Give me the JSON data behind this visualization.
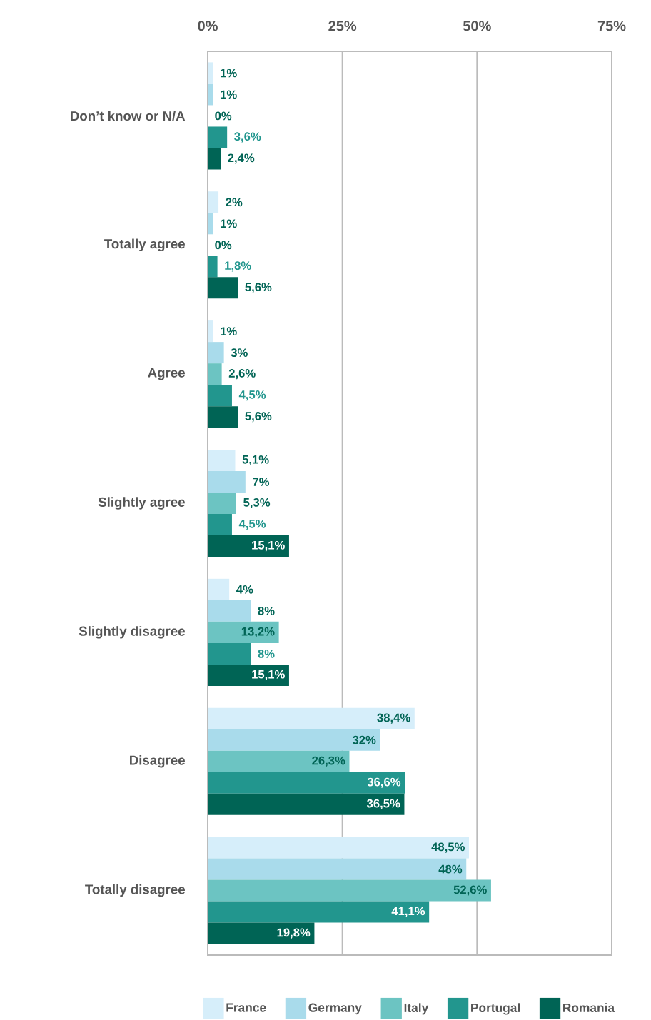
{
  "chart_data": {
    "type": "bar",
    "orientation": "horizontal",
    "categories": [
      "Don’t know or N/A",
      "Totally agree",
      "Agree",
      "Slightly agree",
      "Slightly disagree",
      "Disagree",
      "Totally disagree"
    ],
    "series": [
      {
        "name": "France",
        "color": "#d6eefa",
        "values": [
          1,
          2,
          1,
          5.1,
          4,
          38.4,
          48.5
        ],
        "value_labels": [
          "1%",
          "2%",
          "1%",
          "5,1%",
          "4%",
          "38,4%",
          "48,5%"
        ]
      },
      {
        "name": "Germany",
        "color": "#a9dbeb",
        "values": [
          1,
          1,
          3,
          7,
          8,
          32,
          48
        ],
        "value_labels": [
          "1%",
          "1%",
          "3%",
          "7%",
          "8%",
          "32%",
          "48%"
        ]
      },
      {
        "name": "Italy",
        "color": "#6cc4c2",
        "values": [
          0,
          0,
          2.6,
          5.3,
          13.2,
          26.3,
          52.6
        ],
        "value_labels": [
          "0%",
          "0%",
          "2,6%",
          "5,3%",
          "13,2%",
          "26,3%",
          "52,6%"
        ]
      },
      {
        "name": "Portugal",
        "color": "#22968e",
        "values": [
          3.6,
          1.8,
          4.5,
          4.5,
          8,
          36.6,
          41.1
        ],
        "value_labels": [
          "3,6%",
          "1,8%",
          "4,5%",
          "4,5%",
          "8%",
          "36,6%",
          "41,1%"
        ]
      },
      {
        "name": "Romania",
        "color": "#006455",
        "values": [
          2.4,
          5.6,
          5.6,
          15.1,
          15.1,
          36.5,
          19.8
        ],
        "value_labels": [
          "2,4%",
          "5,6%",
          "5,6%",
          "15,1%",
          "15,1%",
          "36,5%",
          "19,8%"
        ]
      }
    ],
    "xlim": [
      0,
      75
    ],
    "xticks": [
      {
        "value": 0,
        "label": "0%"
      },
      {
        "value": 25,
        "label": "25%"
      },
      {
        "value": 50,
        "label": "50%"
      },
      {
        "value": 75,
        "label": "75%"
      }
    ],
    "grid": "x",
    "legend": "bottom"
  }
}
